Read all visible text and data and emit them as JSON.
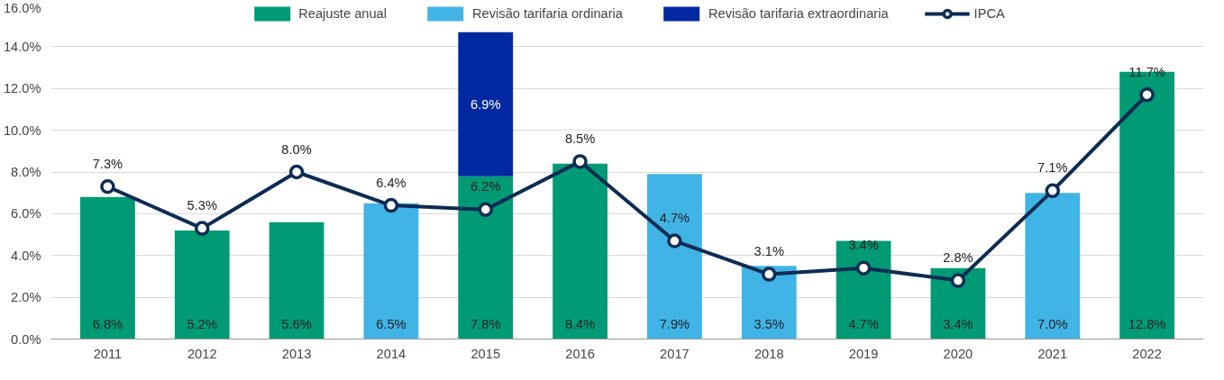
{
  "chart_data": {
    "type": "bar",
    "stacked": true,
    "categories": [
      "2011",
      "2012",
      "2013",
      "2014",
      "2015",
      "2016",
      "2017",
      "2018",
      "2019",
      "2020",
      "2021",
      "2022"
    ],
    "series": [
      {
        "name": "Reajuste anual",
        "color": "#009a74",
        "values": [
          6.8,
          5.2,
          5.6,
          null,
          7.8,
          8.4,
          null,
          null,
          4.7,
          3.4,
          null,
          12.8
        ],
        "value_labels": [
          "6.8%",
          "5.2%",
          "5.6%",
          null,
          "7.8%",
          "8.4%",
          null,
          null,
          "4.7%",
          "3.4%",
          null,
          "12.8%"
        ]
      },
      {
        "name": "Revisão tarifaria ordinaria",
        "color": "#41b4e6",
        "values": [
          null,
          null,
          null,
          6.5,
          null,
          null,
          7.9,
          3.5,
          null,
          null,
          7.0,
          null
        ],
        "value_labels": [
          null,
          null,
          null,
          "6.5%",
          null,
          null,
          "7.9%",
          "3.5%",
          null,
          null,
          "7.0%",
          null
        ]
      },
      {
        "name": "Revisão tarifaria extraordinaria",
        "color": "#0028a0",
        "values": [
          null,
          null,
          null,
          null,
          6.9,
          null,
          null,
          null,
          null,
          null,
          null,
          null
        ],
        "value_labels": [
          null,
          null,
          null,
          null,
          "6.9%",
          null,
          null,
          null,
          null,
          null,
          null,
          null
        ]
      },
      {
        "name": "IPCA",
        "type": "line",
        "color": "#0d2c54",
        "marker": "circle",
        "values": [
          7.3,
          5.3,
          8.0,
          6.4,
          6.2,
          8.5,
          4.7,
          3.1,
          3.4,
          2.8,
          7.1,
          11.7
        ],
        "value_labels": [
          "7.3%",
          "5.3%",
          "8.0%",
          "6.4%",
          "6.2%",
          "8.5%",
          "4.7%",
          "3.1%",
          "3.4%",
          "2.8%",
          "7.1%",
          "11.7%"
        ]
      }
    ],
    "ylim": [
      0,
      16
    ],
    "yticks": [
      {
        "value": 0,
        "label": "0.0%"
      },
      {
        "value": 2,
        "label": "2.0%"
      },
      {
        "value": 4,
        "label": "4.0%"
      },
      {
        "value": 6,
        "label": "6.0%"
      },
      {
        "value": 8,
        "label": "8.0%"
      },
      {
        "value": 10,
        "label": "10.0%"
      },
      {
        "value": 12,
        "label": "12.0%"
      },
      {
        "value": 14,
        "label": "14.0%"
      },
      {
        "value": 16,
        "label": "16.0%"
      }
    ],
    "grid": "y",
    "legend": "top",
    "line_style": "solid"
  }
}
